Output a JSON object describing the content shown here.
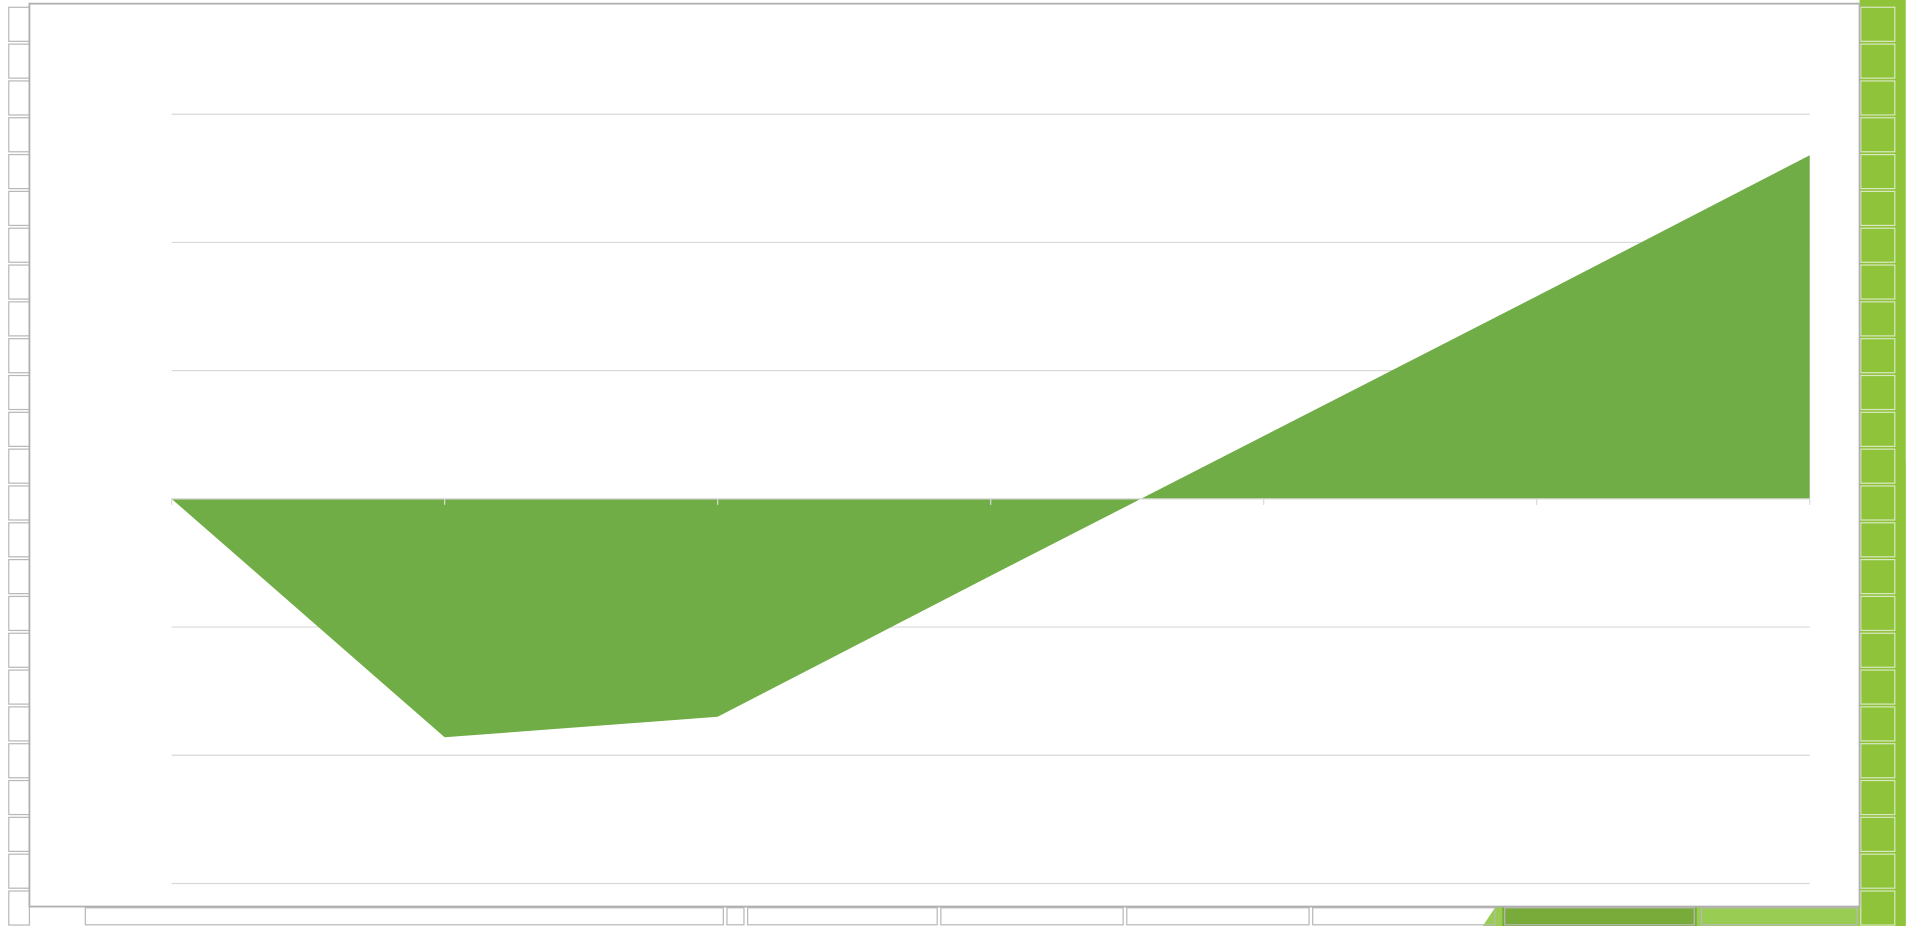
{
  "chart_data": {
    "type": "area",
    "categories": [
      null,
      null,
      null,
      null,
      null,
      null,
      null
    ],
    "values": [
      0,
      -1.86,
      -1.7,
      -0.6,
      0.49,
      1.58,
      2.68
    ],
    "color": "#70ad47",
    "ylim": [
      -3,
      3
    ],
    "yticks": [
      -3,
      -2,
      -1,
      0,
      1,
      2,
      3
    ],
    "grid": true
  }
}
